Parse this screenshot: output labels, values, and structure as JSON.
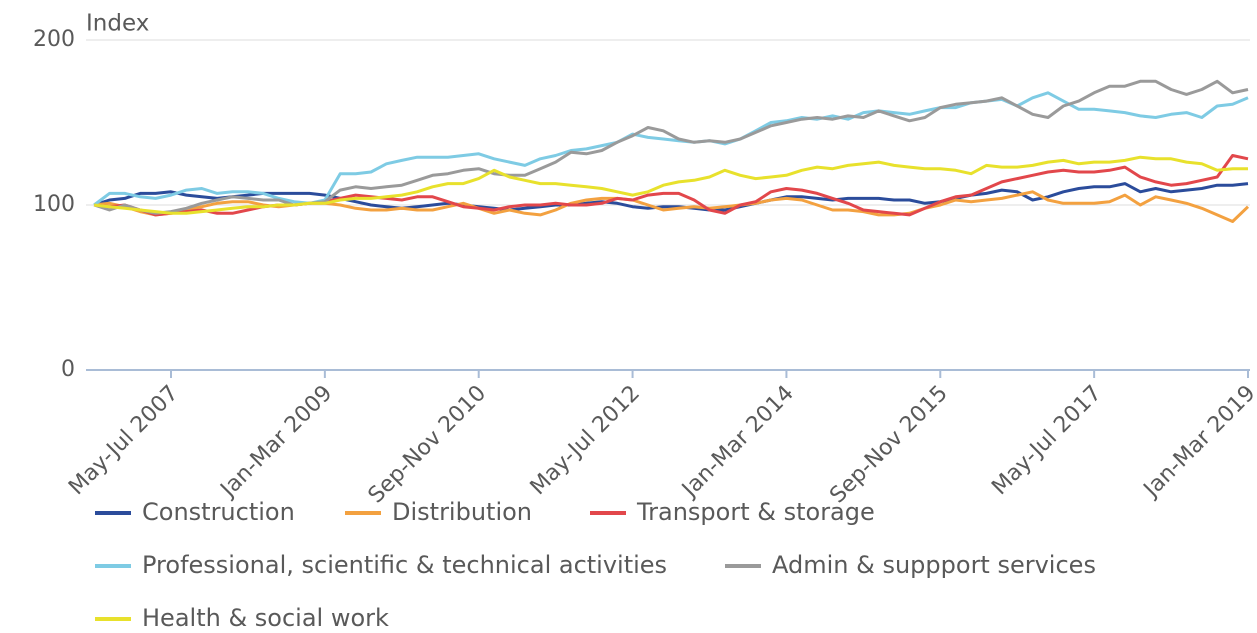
{
  "chart_data": {
    "type": "line",
    "y_label": "Index",
    "categories": [
      null,
      null,
      null,
      null,
      null,
      "May-Jul 2007",
      null,
      null,
      null,
      null,
      null,
      null,
      null,
      null,
      null,
      "Jan-Mar 2009",
      null,
      null,
      null,
      null,
      null,
      null,
      null,
      null,
      null,
      "Sep-Nov 2010",
      null,
      null,
      null,
      null,
      null,
      null,
      null,
      null,
      null,
      "May-Jul 2012",
      null,
      null,
      null,
      null,
      null,
      null,
      null,
      null,
      null,
      "Jan-Mar 2014",
      null,
      null,
      null,
      null,
      null,
      null,
      null,
      null,
      null,
      "Sep-Nov 2015",
      null,
      null,
      null,
      null,
      null,
      null,
      null,
      null,
      null,
      "May-Jul 2017",
      null,
      null,
      null,
      null,
      null,
      null,
      null,
      null,
      null,
      "Jan-Mar 2019"
    ],
    "ylim": [
      0,
      200
    ],
    "yticks": [
      0,
      100,
      200
    ],
    "grid": true,
    "legend": "bottom",
    "series": [
      {
        "name": "Construction",
        "color": "#2b4c9b",
        "values": [
          100,
          103,
          104,
          107,
          107,
          108,
          106,
          105,
          104,
          105,
          106,
          107,
          107,
          107,
          107,
          106,
          104,
          102,
          100,
          99,
          98,
          99,
          100,
          101,
          100,
          99,
          98,
          97,
          98,
          99,
          100,
          100,
          101,
          102,
          101,
          99,
          98,
          99,
          99,
          98,
          97,
          97,
          99,
          101,
          103,
          105,
          105,
          104,
          103,
          104,
          104,
          104,
          103,
          103,
          101,
          102,
          104,
          106,
          107,
          109,
          108,
          103,
          105,
          108,
          110,
          111,
          111,
          113,
          108,
          110,
          108,
          109,
          110,
          112,
          112,
          113
        ]
      },
      {
        "name": "Distribution",
        "color": "#f3a140",
        "values": [
          100,
          101,
          99,
          96,
          94,
          95,
          97,
          99,
          101,
          102,
          102,
          100,
          99,
          100,
          101,
          101,
          100,
          98,
          97,
          97,
          98,
          97,
          97,
          99,
          101,
          98,
          95,
          97,
          95,
          94,
          97,
          101,
          103,
          104,
          104,
          103,
          100,
          97,
          98,
          99,
          98,
          99,
          100,
          101,
          103,
          104,
          103,
          100,
          97,
          97,
          96,
          94,
          94,
          95,
          98,
          100,
          103,
          102,
          103,
          104,
          106,
          108,
          103,
          101,
          101,
          101,
          102,
          106,
          100,
          105,
          103,
          101,
          98,
          94,
          90,
          99
        ]
      },
      {
        "name": "Transport & storage",
        "color": "#e2474b",
        "values": [
          100,
          99,
          100,
          97,
          94,
          95,
          96,
          97,
          95,
          95,
          97,
          99,
          100,
          100,
          101,
          102,
          104,
          106,
          105,
          104,
          103,
          105,
          105,
          102,
          99,
          98,
          97,
          99,
          100,
          100,
          101,
          100,
          100,
          101,
          104,
          103,
          106,
          107,
          107,
          103,
          97,
          95,
          100,
          102,
          108,
          110,
          109,
          107,
          104,
          101,
          97,
          96,
          95,
          94,
          98,
          102,
          105,
          106,
          110,
          114,
          116,
          118,
          120,
          121,
          120,
          120,
          121,
          123,
          117,
          114,
          112,
          113,
          115,
          117,
          130,
          128
        ]
      },
      {
        "name": "Professional, scientific & technical activities",
        "color": "#7ecbe4",
        "values": [
          100,
          107,
          107,
          105,
          104,
          106,
          109,
          110,
          107,
          108,
          108,
          107,
          104,
          102,
          101,
          103,
          119,
          119,
          120,
          125,
          127,
          129,
          129,
          129,
          130,
          131,
          128,
          126,
          124,
          128,
          130,
          133,
          134,
          136,
          138,
          143,
          141,
          140,
          139,
          138,
          139,
          137,
          140,
          145,
          150,
          151,
          153,
          152,
          154,
          152,
          156,
          157,
          156,
          155,
          157,
          159,
          159,
          162,
          163,
          164,
          160,
          165,
          168,
          163,
          158,
          158,
          157,
          156,
          154,
          153,
          155,
          156,
          153,
          160,
          161,
          165
        ]
      },
      {
        "name": "Admin & suppport services",
        "color": "#9a9a9a",
        "values": [
          100,
          97,
          100,
          97,
          95,
          96,
          98,
          101,
          103,
          105,
          104,
          103,
          103,
          100,
          101,
          102,
          109,
          111,
          110,
          111,
          112,
          115,
          118,
          119,
          121,
          122,
          119,
          118,
          118,
          122,
          126,
          132,
          131,
          133,
          138,
          142,
          147,
          145,
          140,
          138,
          139,
          138,
          140,
          144,
          148,
          150,
          152,
          153,
          152,
          154,
          153,
          157,
          154,
          151,
          153,
          159,
          161,
          162,
          163,
          165,
          160,
          155,
          153,
          160,
          163,
          168,
          172,
          172,
          175,
          175,
          170,
          167,
          170,
          175,
          168,
          170
        ]
      },
      {
        "name": "Health & social work",
        "color": "#e8e12c",
        "values": [
          100,
          99,
          98,
          97,
          96,
          95,
          95,
          96,
          97,
          98,
          99,
          99,
          100,
          100,
          101,
          101,
          103,
          104,
          104,
          105,
          106,
          108,
          111,
          113,
          113,
          116,
          121,
          117,
          115,
          113,
          113,
          112,
          111,
          110,
          108,
          106,
          108,
          112,
          114,
          115,
          117,
          121,
          118,
          116,
          117,
          118,
          121,
          123,
          122,
          124,
          125,
          126,
          124,
          123,
          122,
          122,
          121,
          119,
          124,
          123,
          123,
          124,
          126,
          127,
          125,
          126,
          126,
          127,
          129,
          128,
          128,
          126,
          125,
          121,
          122,
          122
        ]
      }
    ]
  }
}
